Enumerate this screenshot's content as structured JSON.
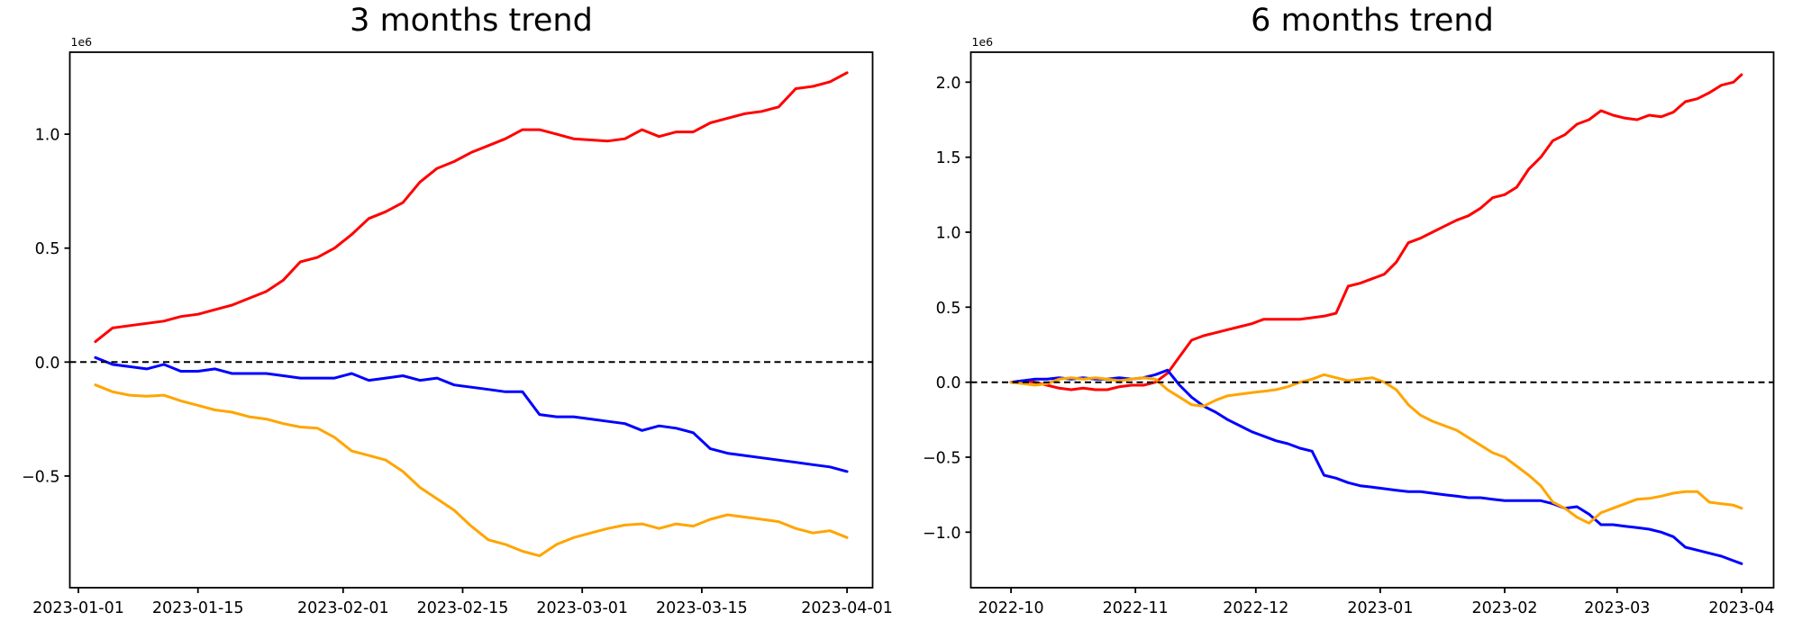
{
  "figure": {
    "background": "#ffffff"
  },
  "chart_data": [
    {
      "id": "three-months",
      "type": "line",
      "title": "3 months trend",
      "y_offset_label": "1e6",
      "y_values_unit": "1e6 (millions)",
      "grid": false,
      "legend": "none",
      "xlim": [
        "2022-12-31",
        "2023-04-04"
      ],
      "ylim": [
        -0.99,
        1.36
      ],
      "xticks": [
        {
          "date": "2023-01-01",
          "label": "2023-01-01"
        },
        {
          "date": "2023-01-15",
          "label": "2023-01-15"
        },
        {
          "date": "2023-02-01",
          "label": "2023-02-01"
        },
        {
          "date": "2023-02-15",
          "label": "2023-02-15"
        },
        {
          "date": "2023-03-01",
          "label": "2023-03-01"
        },
        {
          "date": "2023-03-15",
          "label": "2023-03-15"
        },
        {
          "date": "2023-04-01",
          "label": "2023-04-01"
        }
      ],
      "yticks": [
        {
          "v": 1.0,
          "label": "1.0"
        },
        {
          "v": 0.5,
          "label": "0.5"
        },
        {
          "v": 0.0,
          "label": "0.0"
        },
        {
          "v": -0.5,
          "label": "−0.5"
        }
      ],
      "zero_line": {
        "y": 0,
        "style": "dashed",
        "color": "#000000"
      },
      "x": [
        "2023-01-03",
        "2023-01-05",
        "2023-01-07",
        "2023-01-09",
        "2023-01-11",
        "2023-01-13",
        "2023-01-15",
        "2023-01-17",
        "2023-01-19",
        "2023-01-21",
        "2023-01-23",
        "2023-01-25",
        "2023-01-27",
        "2023-01-29",
        "2023-01-31",
        "2023-02-02",
        "2023-02-04",
        "2023-02-06",
        "2023-02-08",
        "2023-02-10",
        "2023-02-12",
        "2023-02-14",
        "2023-02-16",
        "2023-02-18",
        "2023-02-20",
        "2023-02-22",
        "2023-02-24",
        "2023-02-26",
        "2023-02-28",
        "2023-03-02",
        "2023-03-04",
        "2023-03-06",
        "2023-03-08",
        "2023-03-10",
        "2023-03-12",
        "2023-03-14",
        "2023-03-16",
        "2023-03-18",
        "2023-03-20",
        "2023-03-22",
        "2023-03-24",
        "2023-03-26",
        "2023-03-28",
        "2023-03-30",
        "2023-04-01"
      ],
      "series": [
        {
          "name": "red",
          "color": "#ff0000",
          "values": [
            0.09,
            0.15,
            0.16,
            0.17,
            0.18,
            0.2,
            0.21,
            0.23,
            0.25,
            0.28,
            0.31,
            0.36,
            0.44,
            0.46,
            0.5,
            0.56,
            0.63,
            0.66,
            0.7,
            0.79,
            0.85,
            0.88,
            0.92,
            0.95,
            0.98,
            1.02,
            1.02,
            1.0,
            0.98,
            0.975,
            0.97,
            0.98,
            1.02,
            0.99,
            1.01,
            1.01,
            1.05,
            1.07,
            1.09,
            1.1,
            1.12,
            1.2,
            1.21,
            1.23,
            1.27
          ]
        },
        {
          "name": "blue",
          "color": "#0000ff",
          "values": [
            0.02,
            -0.01,
            -0.02,
            -0.03,
            -0.01,
            -0.04,
            -0.04,
            -0.03,
            -0.05,
            -0.05,
            -0.05,
            -0.06,
            -0.07,
            -0.07,
            -0.07,
            -0.05,
            -0.08,
            -0.07,
            -0.06,
            -0.08,
            -0.07,
            -0.1,
            -0.11,
            -0.12,
            -0.13,
            -0.13,
            -0.23,
            -0.24,
            -0.24,
            -0.25,
            -0.26,
            -0.27,
            -0.3,
            -0.28,
            -0.29,
            -0.31,
            -0.38,
            -0.4,
            -0.41,
            -0.42,
            -0.43,
            -0.44,
            -0.45,
            -0.46,
            -0.48
          ]
        },
        {
          "name": "orange",
          "color": "#ffa500",
          "values": [
            -0.1,
            -0.13,
            -0.145,
            -0.15,
            -0.145,
            -0.17,
            -0.19,
            -0.21,
            -0.22,
            -0.24,
            -0.25,
            -0.27,
            -0.285,
            -0.29,
            -0.33,
            -0.39,
            -0.41,
            -0.43,
            -0.48,
            -0.55,
            -0.6,
            -0.65,
            -0.72,
            -0.78,
            -0.8,
            -0.83,
            -0.85,
            -0.8,
            -0.77,
            -0.75,
            -0.73,
            -0.715,
            -0.71,
            -0.73,
            -0.71,
            -0.72,
            -0.69,
            -0.67,
            -0.68,
            -0.69,
            -0.7,
            -0.73,
            -0.75,
            -0.74,
            -0.77
          ]
        }
      ]
    },
    {
      "id": "six-months",
      "type": "line",
      "title": "6 months trend",
      "y_offset_label": "1e6",
      "y_values_unit": "1e6 (millions)",
      "grid": false,
      "legend": "none",
      "xlim": [
        "2022-09-21",
        "2023-04-09"
      ],
      "ylim": [
        -1.37,
        2.2
      ],
      "xticks": [
        {
          "date": "2022-10-01",
          "label": "2022-10"
        },
        {
          "date": "2022-11-01",
          "label": "2022-11"
        },
        {
          "date": "2022-12-01",
          "label": "2022-12"
        },
        {
          "date": "2023-01-01",
          "label": "2023-01"
        },
        {
          "date": "2023-02-01",
          "label": "2023-02"
        },
        {
          "date": "2023-03-01",
          "label": "2023-03"
        },
        {
          "date": "2023-04-01",
          "label": "2023-04"
        }
      ],
      "yticks": [
        {
          "v": 2.0,
          "label": "2.0"
        },
        {
          "v": 1.5,
          "label": "1.5"
        },
        {
          "v": 1.0,
          "label": "1.0"
        },
        {
          "v": 0.5,
          "label": "0.5"
        },
        {
          "v": 0.0,
          "label": "0.0"
        },
        {
          "v": -0.5,
          "label": "−0.5"
        },
        {
          "v": -1.0,
          "label": "−1.0"
        }
      ],
      "zero_line": {
        "y": 0,
        "style": "dashed",
        "color": "#000000"
      },
      "x": [
        "2022-10-01",
        "2022-10-04",
        "2022-10-07",
        "2022-10-10",
        "2022-10-13",
        "2022-10-16",
        "2022-10-19",
        "2022-10-22",
        "2022-10-25",
        "2022-10-28",
        "2022-10-31",
        "2022-11-03",
        "2022-11-06",
        "2022-11-09",
        "2022-11-12",
        "2022-11-15",
        "2022-11-18",
        "2022-11-21",
        "2022-11-24",
        "2022-11-27",
        "2022-11-30",
        "2022-12-03",
        "2022-12-06",
        "2022-12-09",
        "2022-12-12",
        "2022-12-15",
        "2022-12-18",
        "2022-12-21",
        "2022-12-24",
        "2022-12-27",
        "2022-12-30",
        "2023-01-02",
        "2023-01-05",
        "2023-01-08",
        "2023-01-11",
        "2023-01-14",
        "2023-01-17",
        "2023-01-20",
        "2023-01-23",
        "2023-01-26",
        "2023-01-29",
        "2023-02-01",
        "2023-02-04",
        "2023-02-07",
        "2023-02-10",
        "2023-02-13",
        "2023-02-16",
        "2023-02-19",
        "2023-02-22",
        "2023-02-25",
        "2023-02-28",
        "2023-03-03",
        "2023-03-06",
        "2023-03-09",
        "2023-03-12",
        "2023-03-15",
        "2023-03-18",
        "2023-03-21",
        "2023-03-24",
        "2023-03-27",
        "2023-03-30",
        "2023-04-01"
      ],
      "series": [
        {
          "name": "red",
          "color": "#ff0000",
          "values": [
            0.0,
            0.01,
            0.0,
            -0.02,
            -0.04,
            -0.05,
            -0.04,
            -0.05,
            -0.05,
            -0.03,
            -0.02,
            -0.02,
            0.0,
            0.06,
            0.17,
            0.28,
            0.31,
            0.33,
            0.35,
            0.37,
            0.39,
            0.42,
            0.42,
            0.42,
            0.42,
            0.43,
            0.44,
            0.46,
            0.64,
            0.66,
            0.69,
            0.72,
            0.8,
            0.93,
            0.96,
            1.0,
            1.04,
            1.08,
            1.11,
            1.16,
            1.23,
            1.25,
            1.3,
            1.42,
            1.5,
            1.61,
            1.65,
            1.72,
            1.75,
            1.81,
            1.78,
            1.76,
            1.75,
            1.78,
            1.77,
            1.8,
            1.87,
            1.89,
            1.93,
            1.98,
            2.0,
            2.05
          ]
        },
        {
          "name": "blue",
          "color": "#0000ff",
          "values": [
            0.0,
            0.01,
            0.02,
            0.02,
            0.03,
            0.02,
            0.03,
            0.02,
            0.02,
            0.03,
            0.02,
            0.03,
            0.05,
            0.08,
            -0.02,
            -0.1,
            -0.16,
            -0.2,
            -0.25,
            -0.29,
            -0.33,
            -0.36,
            -0.39,
            -0.41,
            -0.44,
            -0.46,
            -0.62,
            -0.64,
            -0.67,
            -0.69,
            -0.7,
            -0.71,
            -0.72,
            -0.73,
            -0.73,
            -0.74,
            -0.75,
            -0.76,
            -0.77,
            -0.77,
            -0.78,
            -0.79,
            -0.79,
            -0.79,
            -0.79,
            -0.81,
            -0.84,
            -0.83,
            -0.88,
            -0.95,
            -0.95,
            -0.96,
            -0.97,
            -0.98,
            -1.0,
            -1.03,
            -1.1,
            -1.12,
            -1.14,
            -1.16,
            -1.19,
            -1.21
          ]
        },
        {
          "name": "orange",
          "color": "#ffa500",
          "values": [
            0.0,
            -0.01,
            -0.02,
            -0.01,
            0.02,
            0.03,
            0.02,
            0.03,
            0.02,
            0.01,
            0.02,
            0.03,
            0.02,
            -0.05,
            -0.1,
            -0.15,
            -0.16,
            -0.12,
            -0.09,
            -0.08,
            -0.07,
            -0.06,
            -0.05,
            -0.03,
            0.0,
            0.02,
            0.05,
            0.03,
            0.01,
            0.02,
            0.03,
            0.0,
            -0.05,
            -0.15,
            -0.22,
            -0.26,
            -0.29,
            -0.32,
            -0.37,
            -0.42,
            -0.47,
            -0.5,
            -0.56,
            -0.62,
            -0.69,
            -0.8,
            -0.84,
            -0.9,
            -0.94,
            -0.87,
            -0.84,
            -0.81,
            -0.78,
            -0.775,
            -0.76,
            -0.74,
            -0.73,
            -0.73,
            -0.8,
            -0.81,
            -0.82,
            -0.84
          ]
        }
      ]
    }
  ]
}
